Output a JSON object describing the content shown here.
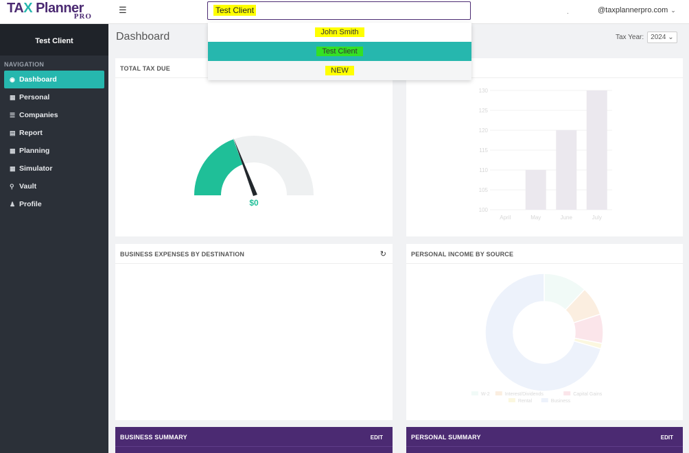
{
  "app": {
    "logo_main": "TAX Planner",
    "logo_sub": "PRO"
  },
  "topbar": {
    "search_value": "Test Client",
    "separator": ".",
    "user_email": "@taxplannerpro.com"
  },
  "search_dropdown": {
    "items": [
      {
        "label": "John Smith"
      },
      {
        "label": "Test Client",
        "selected": true
      },
      {
        "label": "NEW"
      }
    ]
  },
  "sidebar": {
    "client_name": "Test Client",
    "nav_title": "NAVIGATION",
    "items": [
      {
        "label": "Dashboard",
        "icon": "dashboard-icon",
        "active": true
      },
      {
        "label": "Personal",
        "icon": "table-icon"
      },
      {
        "label": "Companies",
        "icon": "list-icon"
      },
      {
        "label": "Report",
        "icon": "document-icon"
      },
      {
        "label": "Planning",
        "icon": "sitemap-icon"
      },
      {
        "label": "Simulator",
        "icon": "calculator-icon"
      },
      {
        "label": "Vault",
        "icon": "key-icon"
      },
      {
        "label": "Profile",
        "icon": "user-icon"
      }
    ]
  },
  "main": {
    "title": "Dashboard",
    "tax_year_label": "Tax Year:",
    "tax_year_value": "2024"
  },
  "panels": {
    "total_tax_due": {
      "title": "TOTAL TAX DUE",
      "gauge_value": "$0"
    },
    "business_expenses": {
      "title": "BUSINESS EXPENSES BY DESTINATION"
    },
    "personal_income": {
      "title": "PERSONAL INCOME BY SOURCE"
    },
    "business_summary": {
      "title": "BUSINESS SUMMARY",
      "edit": "EDIT"
    },
    "personal_summary": {
      "title": "PERSONAL SUMMARY",
      "edit": "EDIT"
    }
  },
  "colors": {
    "brand_purple": "#4b2a72",
    "accent_teal": "#26b7ae",
    "gauge_green": "#1fbf98",
    "highlight_yellow": "#ffff00",
    "highlight_green": "#34e024"
  },
  "chart_data": [
    {
      "type": "bar",
      "title": "",
      "categories": [
        "April",
        "May",
        "June",
        "July"
      ],
      "values": [
        100,
        110,
        120,
        130
      ],
      "ylim": [
        100,
        130
      ],
      "yticks": [
        100,
        105,
        110,
        115,
        120,
        125,
        130
      ],
      "grid": true
    },
    {
      "type": "pie",
      "title": "",
      "labels": [
        "W-2",
        "Interest/Dividends",
        "Capital Gains",
        "Rental",
        "Business"
      ],
      "values": [
        12,
        8,
        8,
        1.5,
        70.5
      ],
      "colors": [
        "#f1faf7",
        "#fbeee0",
        "#fbe5ea",
        "#fbf7df",
        "#edf2fb"
      ],
      "donut": true,
      "legend": "bottom"
    }
  ]
}
